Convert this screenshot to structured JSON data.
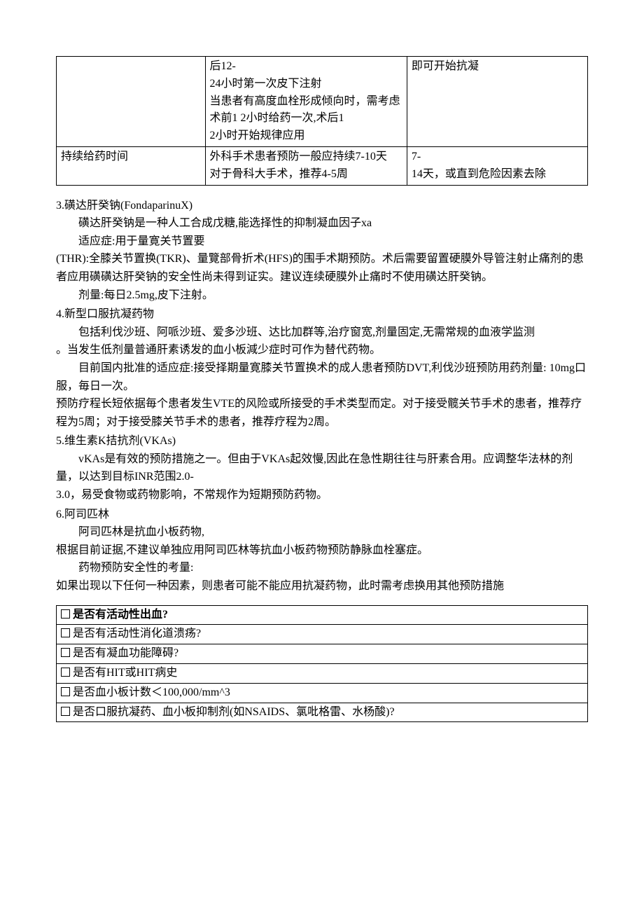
{
  "table1": {
    "rows": [
      {
        "a": "",
        "b": "后12-\n24小时第一次皮下注射\n当患者有高度血栓形成倾向时，需考虑术前1  2小时给药一次,术后1\n2小时开始规律应用",
        "c": "即可开始抗凝"
      },
      {
        "a": "持续给药时间",
        "b": "外科手术患者预防一般应持续7-10天\n对于骨科大手术，推荐4-5周",
        "c": "7-\n14天，或直到危险因素去除"
      }
    ]
  },
  "s3": {
    "title": "3.磺达肝癸钠(FondaparinuX)",
    "p1": "磺达肝癸钠是一种人工合成戊糖,能选择性的抑制凝血因子xa",
    "p2": "适应症:用于量寛关节置要",
    "p3": "(THR):全膝关节置换(TKR)、量覽部骨折术(HFS)的围手术期预防。术后需要留置硬膜外导管注射止痛剂的患者应用磺磺达肝癸钠的安全性尚未得到证实。建议连续硬膜外止痛时不使用磺达肝癸钠。",
    "p4": "剂量:每日2.5mg,皮下注射。"
  },
  "s4": {
    "title": "4.新型口服抗凝药物",
    "p1": "包括利伐沙班、阿哌沙班、爱多沙班、达比加群等,治疗窗宽,剂量固定,无需常规的血液学监测",
    "p2": "。当发生低剂量普通肝素诱发的血小板減少症时可作为替代药物。",
    "p3": "目前国内批准的适应症:接受择期量寛膝关节置换术的成人患者预防DVT,利伐沙班预防用药剂量: 10mg口服，毎日一次。",
    "p4": "预防疗程长短依据毎个患者发生VTE的风险或所接受的手术类型而定。对于接受髋关节手术的患者，推荐疗程为5周；对于接受膝关节手术的患者，推荐疗程为2周。"
  },
  "s5": {
    "title": "5.维生素K拮抗剂(VKAs)",
    "p1": "vKAs是有效的预防措施之一。但由于VKAs起效慢,因此在急性期往往与肝素合用。应调整华法林的剂量，以达到目标INR范围2.0-",
    "p2": "3.0，易受食物或药物影响，不常规作为短期预防药物。"
  },
  "s6": {
    "title": "6.阿司匹林",
    "p1": "阿司匹林是抗血小板药物,",
    "p2": "根据目前证据,不建议单独应用阿司匹林等抗血小板药物预防静脉血栓塞症。",
    "p3": "药物预防安全性的考量:",
    "p4": "如果岀现以下任何一种因素，则患者可能不能应用抗凝药物，此时需考虑换用其他预防措施"
  },
  "checklist": {
    "header": "是否有活动性出血?",
    "items": [
      "是否有活动性消化道溃疡?",
      "是否有凝血功能障碍?",
      "是否有HIT或HIT病史",
      "是否血小板计数＜100,000/mm^3",
      "是否口服抗凝药、血小板抑制剂(如NSAIDS、氯吡格雷、水杨酸)?"
    ]
  }
}
